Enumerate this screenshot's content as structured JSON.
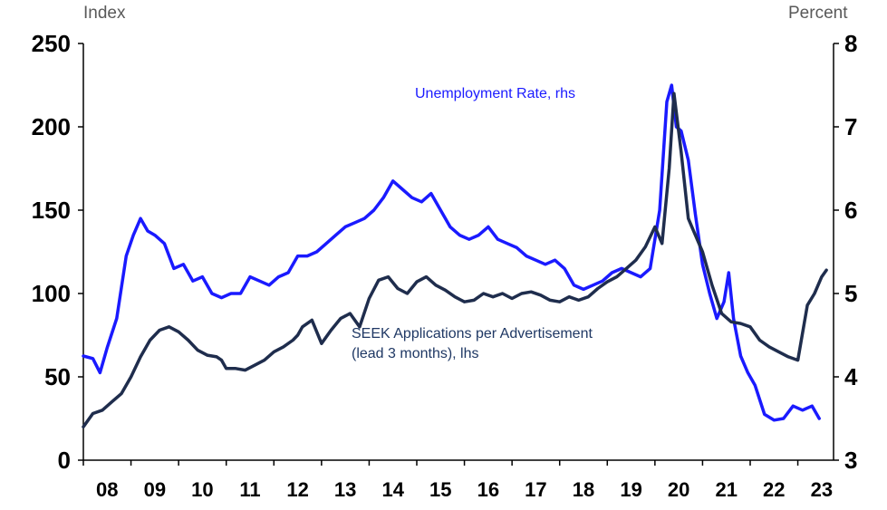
{
  "axis_titles": {
    "left": "Index",
    "right": "Percent"
  },
  "colors": {
    "unemployment": "#1a1aff",
    "seek": "#1f2d4d",
    "axis": "#000000",
    "label_seek": "#1f3864"
  },
  "chart_data": {
    "type": "line",
    "title": "",
    "ylabel_left": "Index",
    "ylabel_right": "Percent",
    "ylim_left": [
      0,
      250
    ],
    "ylim_right": [
      3,
      8
    ],
    "yticks_left": [
      0,
      50,
      100,
      150,
      200,
      250
    ],
    "yticks_right": [
      3,
      4,
      5,
      6,
      7,
      8
    ],
    "xlim": [
      2008.0,
      2023.75
    ],
    "x_tick_labels": [
      "08",
      "09",
      "10",
      "11",
      "12",
      "13",
      "14",
      "15",
      "16",
      "17",
      "18",
      "19",
      "20",
      "21",
      "22",
      "23"
    ],
    "x_tick_positions": [
      2008,
      2009,
      2010,
      2011,
      2012,
      2013,
      2014,
      2015,
      2016,
      2017,
      2018,
      2019,
      2020,
      2021,
      2022,
      2023
    ],
    "grid": false,
    "legend": "inline labels",
    "series": [
      {
        "name": "Unemployment Rate, rhs",
        "label_lines": [
          "Unemployment Rate, rhs"
        ],
        "axis": "right",
        "x": [
          2008.0,
          2008.2,
          2008.35,
          2008.5,
          2008.7,
          2008.9,
          2009.05,
          2009.2,
          2009.35,
          2009.5,
          2009.7,
          2009.9,
          2010.1,
          2010.3,
          2010.5,
          2010.7,
          2010.9,
          2011.1,
          2011.3,
          2011.5,
          2011.7,
          2011.9,
          2012.1,
          2012.3,
          2012.5,
          2012.7,
          2012.9,
          2013.1,
          2013.3,
          2013.5,
          2013.7,
          2013.9,
          2014.1,
          2014.3,
          2014.5,
          2014.7,
          2014.9,
          2015.1,
          2015.3,
          2015.5,
          2015.7,
          2015.9,
          2016.1,
          2016.3,
          2016.5,
          2016.7,
          2016.9,
          2017.1,
          2017.3,
          2017.5,
          2017.7,
          2017.9,
          2018.1,
          2018.3,
          2018.5,
          2018.7,
          2018.9,
          2019.1,
          2019.3,
          2019.5,
          2019.7,
          2019.9,
          2020.1,
          2020.25,
          2020.35,
          2020.45,
          2020.55,
          2020.7,
          2020.85,
          2021.0,
          2021.15,
          2021.3,
          2021.45,
          2021.55,
          2021.65,
          2021.8,
          2021.95,
          2022.1,
          2022.3,
          2022.5,
          2022.7,
          2022.9,
          2023.1,
          2023.3,
          2023.45
        ],
        "values": [
          4.25,
          4.22,
          4.05,
          4.35,
          4.7,
          5.45,
          5.7,
          5.9,
          5.75,
          5.7,
          5.6,
          5.3,
          5.35,
          5.15,
          5.2,
          5.0,
          4.95,
          5.0,
          5.0,
          5.2,
          5.15,
          5.1,
          5.2,
          5.25,
          5.45,
          5.45,
          5.5,
          5.6,
          5.7,
          5.8,
          5.85,
          5.9,
          6.0,
          6.15,
          6.35,
          6.25,
          6.15,
          6.1,
          6.2,
          6.0,
          5.8,
          5.7,
          5.65,
          5.7,
          5.8,
          5.65,
          5.6,
          5.55,
          5.45,
          5.4,
          5.35,
          5.4,
          5.3,
          5.1,
          5.05,
          5.1,
          5.15,
          5.25,
          5.3,
          5.25,
          5.2,
          5.3,
          6.0,
          7.3,
          7.5,
          7.0,
          6.95,
          6.6,
          5.95,
          5.35,
          5.0,
          4.7,
          4.9,
          5.25,
          4.7,
          4.25,
          4.05,
          3.9,
          3.55,
          3.48,
          3.5,
          3.65,
          3.6,
          3.65,
          3.5
        ]
      },
      {
        "name": "SEEK Applications per Advertisement (lead 3 months), lhs",
        "label_lines": [
          "SEEK Applications per Advertisement",
          "(lead 3 months), lhs"
        ],
        "axis": "left",
        "x": [
          2008.0,
          2008.2,
          2008.4,
          2008.6,
          2008.8,
          2009.0,
          2009.2,
          2009.4,
          2009.6,
          2009.8,
          2010.0,
          2010.2,
          2010.4,
          2010.6,
          2010.8,
          2010.9,
          2011.0,
          2011.2,
          2011.4,
          2011.6,
          2011.8,
          2012.0,
          2012.2,
          2012.4,
          2012.5,
          2012.6,
          2012.8,
          2013.0,
          2013.2,
          2013.4,
          2013.6,
          2013.8,
          2014.0,
          2014.2,
          2014.4,
          2014.6,
          2014.8,
          2015.0,
          2015.2,
          2015.4,
          2015.6,
          2015.8,
          2016.0,
          2016.2,
          2016.4,
          2016.6,
          2016.8,
          2017.0,
          2017.2,
          2017.4,
          2017.6,
          2017.8,
          2018.0,
          2018.2,
          2018.4,
          2018.6,
          2018.8,
          2019.0,
          2019.2,
          2019.4,
          2019.6,
          2019.8,
          2020.0,
          2020.15,
          2020.3,
          2020.4,
          2020.55,
          2020.7,
          2020.85,
          2021.0,
          2021.2,
          2021.4,
          2021.6,
          2021.8,
          2022.0,
          2022.2,
          2022.4,
          2022.6,
          2022.8,
          2023.0,
          2023.2,
          2023.4,
          2023.6
        ],
        "values": [
          20,
          28,
          30,
          35,
          40,
          50,
          62,
          72,
          78,
          80,
          77,
          72,
          66,
          63,
          62,
          60,
          55,
          55,
          54,
          57,
          60,
          65,
          68,
          72,
          75,
          80,
          84,
          70,
          78,
          85,
          88,
          80,
          97,
          108,
          110,
          103,
          100,
          107,
          110,
          105,
          102,
          98,
          95,
          96,
          100,
          98,
          100,
          97,
          100,
          101,
          99,
          96,
          95,
          98,
          96,
          98,
          103,
          107,
          110,
          115,
          120,
          128,
          140,
          130,
          175,
          220,
          185,
          145,
          135,
          125,
          105,
          88,
          83,
          82,
          80,
          72,
          68,
          65,
          62,
          60,
          65,
          80,
          93
        ],
        "extra_points": {
          "x": [
            2023.2,
            2023.35,
            2023.5,
            2023.6
          ],
          "values": [
            93,
            100,
            110,
            114
          ]
        }
      }
    ]
  }
}
